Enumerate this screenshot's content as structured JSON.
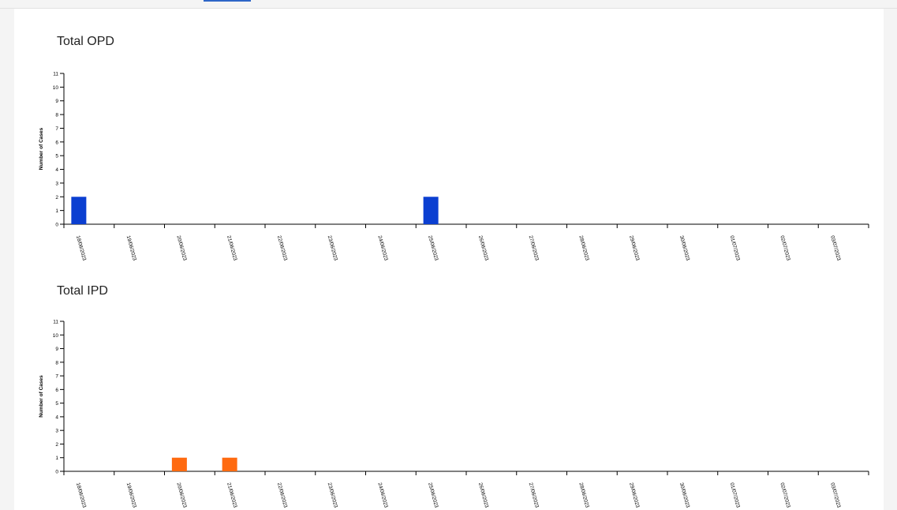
{
  "chart_data": [
    {
      "type": "bar",
      "title": "Total OPD",
      "ylabel": "Number of Cases",
      "xlabel": "",
      "ylim": [
        0,
        11
      ],
      "yticks": [
        0,
        1,
        2,
        3,
        4,
        5,
        6,
        7,
        8,
        9,
        10,
        11
      ],
      "color": "#0b3fd1",
      "categories": [
        "18/06/2023",
        "19/06/2023",
        "20/06/2023",
        "21/06/2023",
        "22/06/2023",
        "23/06/2023",
        "24/06/2023",
        "25/06/2023",
        "26/06/2023",
        "27/06/2023",
        "28/06/2023",
        "29/06/2023",
        "30/06/2023",
        "01/07/2023",
        "02/07/2023",
        "03/07/2023"
      ],
      "values": [
        2,
        0,
        0,
        0,
        0,
        0,
        0,
        2,
        0,
        0,
        0,
        0,
        0,
        0,
        0,
        0
      ],
      "grid": false
    },
    {
      "type": "bar",
      "title": "Total IPD",
      "ylabel": "Number of Cases",
      "xlabel": "",
      "ylim": [
        0,
        11
      ],
      "yticks": [
        0,
        1,
        2,
        3,
        4,
        5,
        6,
        7,
        8,
        9,
        10,
        11
      ],
      "color": "#ff6a10",
      "categories": [
        "18/06/2023",
        "19/06/2023",
        "20/06/2023",
        "21/06/2023",
        "22/06/2023",
        "23/06/2023",
        "24/06/2023",
        "25/06/2023",
        "26/06/2023",
        "27/06/2023",
        "28/06/2023",
        "29/06/2023",
        "30/06/2023",
        "01/07/2023",
        "02/07/2023",
        "03/07/2023"
      ],
      "values": [
        0,
        0,
        1,
        1,
        0,
        0,
        0,
        0,
        0,
        0,
        0,
        0,
        0,
        0,
        0,
        0
      ],
      "grid": false
    }
  ]
}
